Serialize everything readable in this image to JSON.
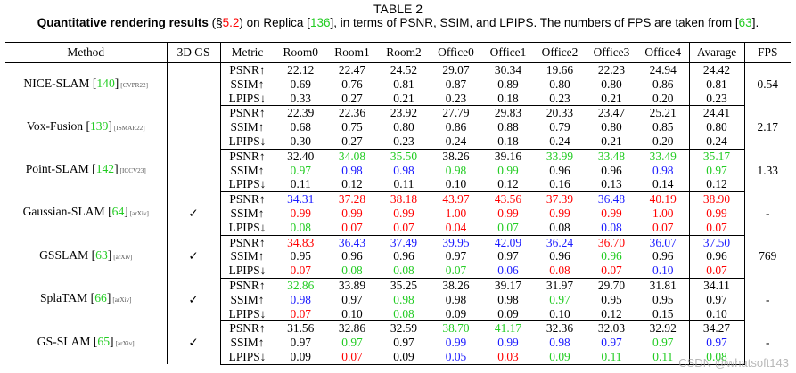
{
  "caption": {
    "table_label": "TABLE 2",
    "bold_text": "Quantitative rendering results",
    "pre_sec": " (§",
    "sec_ref": "5.2",
    "mid1": ") on Replica [",
    "replica_ref": "136",
    "mid2": "], in terms of PSNR, SSIM, and LPIPS. The numbers of FPS are taken from [",
    "fps_ref": "63",
    "end": "]."
  },
  "headers": [
    "Method",
    "3D GS",
    "Metric",
    "Room0",
    "Room1",
    "Room2",
    "Office0",
    "Office1",
    "Office2",
    "Office3",
    "Office4",
    "Avarage",
    "FPS"
  ],
  "colors": {
    "red": "#ff0000",
    "green": "#22cc22",
    "blue": "#1a1aff",
    "black": "#000000"
  },
  "methods": [
    {
      "name": "NICE-SLAM",
      "ref": "140",
      "venue": "[CVPR22]",
      "gs": "",
      "fps": "0.54",
      "rows": [
        {
          "metric": "PSNR↑",
          "cells": [
            [
              "22.12",
              "k"
            ],
            [
              "22.47",
              "k"
            ],
            [
              "24.52",
              "k"
            ],
            [
              "29.07",
              "k"
            ],
            [
              "30.34",
              "k"
            ],
            [
              "19.66",
              "k"
            ],
            [
              "22.23",
              "k"
            ],
            [
              "24.94",
              "k"
            ],
            [
              "24.42",
              "k"
            ]
          ]
        },
        {
          "metric": "SSIM↑",
          "cells": [
            [
              "0.69",
              "k"
            ],
            [
              "0.76",
              "k"
            ],
            [
              "0.81",
              "k"
            ],
            [
              "0.87",
              "k"
            ],
            [
              "0.89",
              "k"
            ],
            [
              "0.80",
              "k"
            ],
            [
              "0.80",
              "k"
            ],
            [
              "0.86",
              "k"
            ],
            [
              "0.81",
              "k"
            ]
          ]
        },
        {
          "metric": "LPIPS↓",
          "cells": [
            [
              "0.33",
              "k"
            ],
            [
              "0.27",
              "k"
            ],
            [
              "0.21",
              "k"
            ],
            [
              "0.23",
              "k"
            ],
            [
              "0.18",
              "k"
            ],
            [
              "0.23",
              "k"
            ],
            [
              "0.21",
              "k"
            ],
            [
              "0.20",
              "k"
            ],
            [
              "0.23",
              "k"
            ]
          ]
        }
      ]
    },
    {
      "name": "Vox-Fusion",
      "ref": "139",
      "venue": "[ISMAR22]",
      "gs": "",
      "fps": "2.17",
      "rows": [
        {
          "metric": "PSNR↑",
          "cells": [
            [
              "22.39",
              "k"
            ],
            [
              "22.36",
              "k"
            ],
            [
              "23.92",
              "k"
            ],
            [
              "27.79",
              "k"
            ],
            [
              "29.83",
              "k"
            ],
            [
              "20.33",
              "k"
            ],
            [
              "23.47",
              "k"
            ],
            [
              "25.21",
              "k"
            ],
            [
              "24.41",
              "k"
            ]
          ]
        },
        {
          "metric": "SSIM↑",
          "cells": [
            [
              "0.68",
              "k"
            ],
            [
              "0.75",
              "k"
            ],
            [
              "0.80",
              "k"
            ],
            [
              "0.86",
              "k"
            ],
            [
              "0.88",
              "k"
            ],
            [
              "0.79",
              "k"
            ],
            [
              "0.80",
              "k"
            ],
            [
              "0.85",
              "k"
            ],
            [
              "0.80",
              "k"
            ]
          ]
        },
        {
          "metric": "LPIPS↓",
          "cells": [
            [
              "0.30",
              "k"
            ],
            [
              "0.27",
              "k"
            ],
            [
              "0.23",
              "k"
            ],
            [
              "0.24",
              "k"
            ],
            [
              "0.18",
              "k"
            ],
            [
              "0.24",
              "k"
            ],
            [
              "0.21",
              "k"
            ],
            [
              "0.20",
              "k"
            ],
            [
              "0.24",
              "k"
            ]
          ]
        }
      ]
    },
    {
      "name": "Point-SLAM",
      "ref": "142",
      "venue": "[ICCV23]",
      "gs": "",
      "fps": "1.33",
      "rows": [
        {
          "metric": "PSNR↑",
          "cells": [
            [
              "32.40",
              "k"
            ],
            [
              "34.08",
              "g"
            ],
            [
              "35.50",
              "g"
            ],
            [
              "38.26",
              "k"
            ],
            [
              "39.16",
              "k"
            ],
            [
              "33.99",
              "g"
            ],
            [
              "33.48",
              "g"
            ],
            [
              "33.49",
              "g"
            ],
            [
              "35.17",
              "g"
            ]
          ]
        },
        {
          "metric": "SSIM↑",
          "cells": [
            [
              "0.97",
              "g"
            ],
            [
              "0.98",
              "b"
            ],
            [
              "0.98",
              "b"
            ],
            [
              "0.98",
              "g"
            ],
            [
              "0.99",
              "g"
            ],
            [
              "0.96",
              "k"
            ],
            [
              "0.96",
              "k"
            ],
            [
              "0.98",
              "b"
            ],
            [
              "0.97",
              "g"
            ]
          ]
        },
        {
          "metric": "LPIPS↓",
          "cells": [
            [
              "0.11",
              "k"
            ],
            [
              "0.12",
              "k"
            ],
            [
              "0.11",
              "k"
            ],
            [
              "0.10",
              "k"
            ],
            [
              "0.12",
              "k"
            ],
            [
              "0.16",
              "k"
            ],
            [
              "0.13",
              "k"
            ],
            [
              "0.14",
              "k"
            ],
            [
              "0.12",
              "k"
            ]
          ]
        }
      ]
    },
    {
      "name": "Gaussian-SLAM",
      "ref": "64",
      "venue": "[arXiv]",
      "gs": "✓",
      "fps": "-",
      "rows": [
        {
          "metric": "PSNR↑",
          "cells": [
            [
              "34.31",
              "b"
            ],
            [
              "37.28",
              "r"
            ],
            [
              "38.18",
              "r"
            ],
            [
              "43.97",
              "r"
            ],
            [
              "43.56",
              "r"
            ],
            [
              "37.39",
              "r"
            ],
            [
              "36.48",
              "b"
            ],
            [
              "40.19",
              "r"
            ],
            [
              "38.90",
              "r"
            ]
          ]
        },
        {
          "metric": "SSIM↑",
          "cells": [
            [
              "0.99",
              "r"
            ],
            [
              "0.99",
              "r"
            ],
            [
              "0.99",
              "r"
            ],
            [
              "1.00",
              "r"
            ],
            [
              "0.99",
              "r"
            ],
            [
              "0.99",
              "r"
            ],
            [
              "0.99",
              "r"
            ],
            [
              "1.00",
              "r"
            ],
            [
              "0.99",
              "r"
            ]
          ]
        },
        {
          "metric": "LPIPS↓",
          "cells": [
            [
              "0.08",
              "g"
            ],
            [
              "0.07",
              "r"
            ],
            [
              "0.07",
              "r"
            ],
            [
              "0.04",
              "r"
            ],
            [
              "0.07",
              "g"
            ],
            [
              "0.08",
              "k"
            ],
            [
              "0.08",
              "b"
            ],
            [
              "0.07",
              "r"
            ],
            [
              "0.07",
              "r"
            ]
          ]
        }
      ]
    },
    {
      "name": "GSSLAM",
      "ref": "63",
      "venue": "[arXiv]",
      "gs": "✓",
      "fps": "769",
      "rows": [
        {
          "metric": "PSNR↑",
          "cells": [
            [
              "34.83",
              "r"
            ],
            [
              "36.43",
              "b"
            ],
            [
              "37.49",
              "b"
            ],
            [
              "39.95",
              "b"
            ],
            [
              "42.09",
              "b"
            ],
            [
              "36.24",
              "b"
            ],
            [
              "36.70",
              "r"
            ],
            [
              "36.07",
              "b"
            ],
            [
              "37.50",
              "b"
            ]
          ]
        },
        {
          "metric": "SSIM↑",
          "cells": [
            [
              "0.95",
              "k"
            ],
            [
              "0.96",
              "k"
            ],
            [
              "0.96",
              "k"
            ],
            [
              "0.97",
              "k"
            ],
            [
              "0.97",
              "k"
            ],
            [
              "0.96",
              "k"
            ],
            [
              "0.96",
              "g"
            ],
            [
              "0.96",
              "k"
            ],
            [
              "0.96",
              "k"
            ]
          ]
        },
        {
          "metric": "LPIPS↓",
          "cells": [
            [
              "0.07",
              "r"
            ],
            [
              "0.08",
              "g"
            ],
            [
              "0.08",
              "g"
            ],
            [
              "0.07",
              "g"
            ],
            [
              "0.06",
              "b"
            ],
            [
              "0.08",
              "r"
            ],
            [
              "0.07",
              "r"
            ],
            [
              "0.10",
              "b"
            ],
            [
              "0.07",
              "r"
            ]
          ]
        }
      ]
    },
    {
      "name": "SplaTAM",
      "ref": "66",
      "venue": "[arXiv]",
      "gs": "✓",
      "fps": "-",
      "rows": [
        {
          "metric": "PSNR↑",
          "cells": [
            [
              "32.86",
              "g"
            ],
            [
              "33.89",
              "k"
            ],
            [
              "35.25",
              "k"
            ],
            [
              "38.26",
              "k"
            ],
            [
              "39.17",
              "k"
            ],
            [
              "31.97",
              "k"
            ],
            [
              "29.70",
              "k"
            ],
            [
              "31.81",
              "k"
            ],
            [
              "34.11",
              "k"
            ]
          ]
        },
        {
          "metric": "SSIM↑",
          "cells": [
            [
              "0.98",
              "b"
            ],
            [
              "0.97",
              "k"
            ],
            [
              "0.98",
              "g"
            ],
            [
              "0.98",
              "k"
            ],
            [
              "0.98",
              "k"
            ],
            [
              "0.97",
              "g"
            ],
            [
              "0.95",
              "k"
            ],
            [
              "0.95",
              "k"
            ],
            [
              "0.97",
              "k"
            ]
          ]
        },
        {
          "metric": "LPIPS↓",
          "cells": [
            [
              "0.07",
              "r"
            ],
            [
              "0.10",
              "k"
            ],
            [
              "0.08",
              "g"
            ],
            [
              "0.09",
              "k"
            ],
            [
              "0.09",
              "k"
            ],
            [
              "0.10",
              "k"
            ],
            [
              "0.12",
              "k"
            ],
            [
              "0.15",
              "k"
            ],
            [
              "0.10",
              "k"
            ]
          ]
        }
      ]
    },
    {
      "name": "GS-SLAM",
      "ref": "65",
      "venue": "[arXiv]",
      "gs": "✓",
      "fps": "-",
      "rows": [
        {
          "metric": "PSNR↑",
          "cells": [
            [
              "31.56",
              "k"
            ],
            [
              "32.86",
              "k"
            ],
            [
              "32.59",
              "k"
            ],
            [
              "38.70",
              "g"
            ],
            [
              "41.17",
              "g"
            ],
            [
              "32.36",
              "k"
            ],
            [
              "32.03",
              "k"
            ],
            [
              "32.92",
              "k"
            ],
            [
              "34.27",
              "k"
            ]
          ]
        },
        {
          "metric": "SSIM↑",
          "cells": [
            [
              "0.97",
              "k"
            ],
            [
              "0.97",
              "g"
            ],
            [
              "0.97",
              "k"
            ],
            [
              "0.99",
              "b"
            ],
            [
              "0.99",
              "b"
            ],
            [
              "0.98",
              "b"
            ],
            [
              "0.97",
              "b"
            ],
            [
              "0.97",
              "g"
            ],
            [
              "0.97",
              "b"
            ]
          ]
        },
        {
          "metric": "LPIPS↓",
          "cells": [
            [
              "0.09",
              "k"
            ],
            [
              "0.07",
              "r"
            ],
            [
              "0.09",
              "k"
            ],
            [
              "0.05",
              "b"
            ],
            [
              "0.03",
              "r"
            ],
            [
              "0.09",
              "g"
            ],
            [
              "0.11",
              "g"
            ],
            [
              "0.11",
              "g"
            ],
            [
              "0.08",
              "g"
            ]
          ]
        }
      ]
    }
  ],
  "watermark": "CSDN @whatsoft143"
}
